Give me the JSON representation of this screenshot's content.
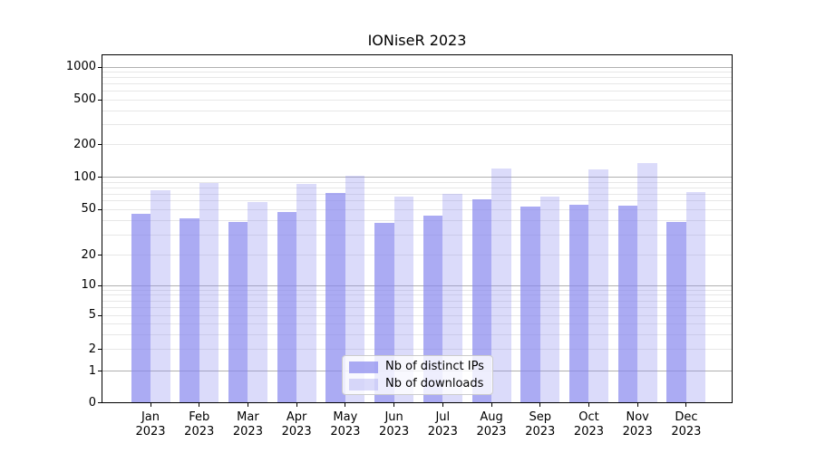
{
  "chart_data": {
    "type": "bar",
    "title": "IONiseR 2023",
    "categories": [
      "Jan",
      "Feb",
      "Mar",
      "Apr",
      "May",
      "Jun",
      "Jul",
      "Aug",
      "Sep",
      "Oct",
      "Nov",
      "Dec"
    ],
    "year": "2023",
    "series": [
      {
        "name": "Nb of distinct IPs",
        "color": "#8888ee",
        "alpha": 0.7,
        "values": [
          46,
          42,
          39,
          48,
          72,
          38,
          44,
          62,
          53,
          55,
          54,
          39
        ]
      },
      {
        "name": "Nb of downloads",
        "color": "#8888ee",
        "alpha": 0.3,
        "values": [
          76,
          89,
          59,
          86,
          103,
          66,
          70,
          120,
          66,
          119,
          135,
          73
        ]
      }
    ],
    "y_ticks": [
      0,
      1,
      2,
      5,
      10,
      20,
      50,
      100,
      200,
      500,
      1000
    ],
    "y_scale": "symlog (log above 1, compressed linear near 0)",
    "ylim": [
      0,
      1365
    ],
    "grid": true,
    "legend_position": "lower center",
    "major_grid_color": "#b0b0b0",
    "minor_grid_color": "#e7e7e7",
    "axis_color": "#000000",
    "background_color": "#ffffff"
  }
}
